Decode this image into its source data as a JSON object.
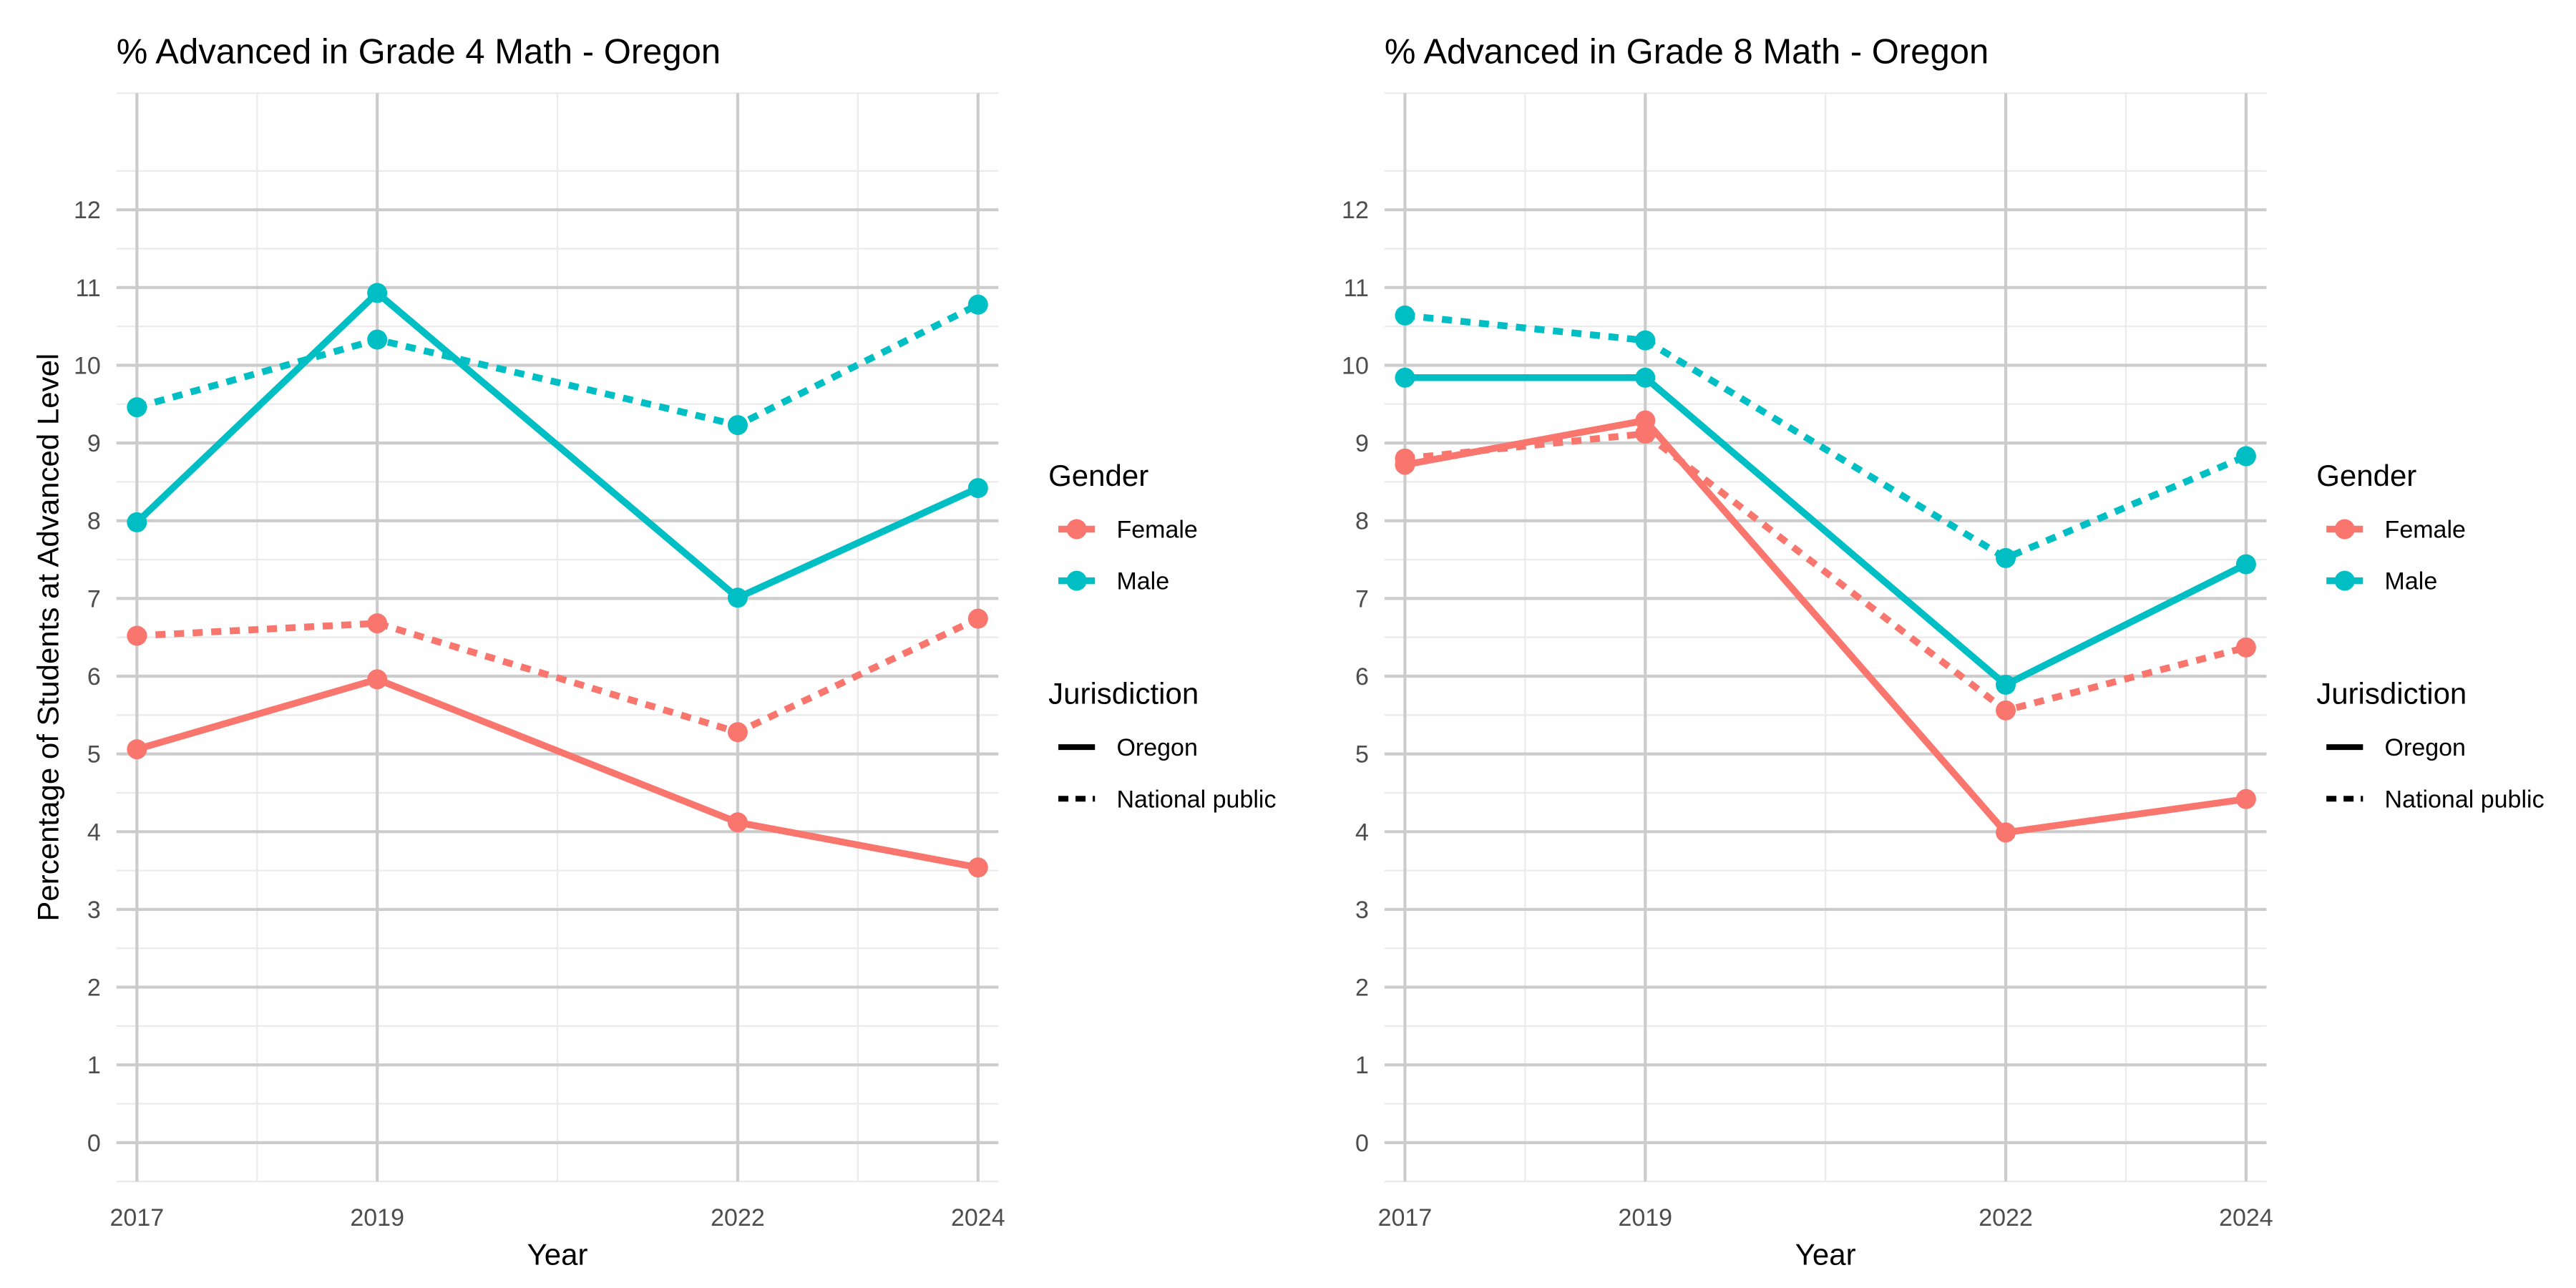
{
  "chart_data": [
    {
      "type": "line",
      "title": "% Advanced in Grade 4 Math - Oregon",
      "xlabel": "Year",
      "ylabel": "Percentage of Students at Advanced Level",
      "x": [
        2017,
        2019,
        2022,
        2024
      ],
      "xlim": [
        2016.83,
        2024.17
      ],
      "ylim": [
        -0.5,
        13.5
      ],
      "yticks": [
        0,
        1,
        2,
        3,
        4,
        5,
        6,
        7,
        8,
        9,
        10,
        11,
        12
      ],
      "grid": true,
      "series": [
        {
          "gender": "Female",
          "jurisdiction": "Oregon",
          "values": [
            5.06,
            5.96,
            4.12,
            3.54
          ]
        },
        {
          "gender": "Female",
          "jurisdiction": "National public",
          "values": [
            6.52,
            6.68,
            5.28,
            6.74
          ]
        },
        {
          "gender": "Male",
          "jurisdiction": "Oregon",
          "values": [
            7.98,
            10.93,
            7.01,
            8.42
          ]
        },
        {
          "gender": "Male",
          "jurisdiction": "National public",
          "values": [
            9.46,
            10.33,
            9.23,
            10.78
          ]
        }
      ]
    },
    {
      "type": "line",
      "title": "% Advanced in Grade 8 Math - Oregon",
      "xlabel": "Year",
      "ylabel": "",
      "x": [
        2017,
        2019,
        2022,
        2024
      ],
      "xlim": [
        2016.83,
        2024.17
      ],
      "ylim": [
        -0.5,
        13.5
      ],
      "yticks": [
        0,
        1,
        2,
        3,
        4,
        5,
        6,
        7,
        8,
        9,
        10,
        11,
        12
      ],
      "grid": true,
      "series": [
        {
          "gender": "Female",
          "jurisdiction": "Oregon",
          "values": [
            8.72,
            9.29,
            3.99,
            4.42
          ]
        },
        {
          "gender": "Female",
          "jurisdiction": "National public",
          "values": [
            8.8,
            9.12,
            5.56,
            6.37
          ]
        },
        {
          "gender": "Male",
          "jurisdiction": "Oregon",
          "values": [
            9.84,
            9.84,
            5.89,
            7.44
          ]
        },
        {
          "gender": "Male",
          "jurisdiction": "National public",
          "values": [
            10.64,
            10.32,
            7.52,
            8.83
          ]
        }
      ]
    }
  ],
  "legend": {
    "placement": "right",
    "gender_title": "Gender",
    "gender_entries": [
      {
        "label": "Female",
        "color": "#F8766D"
      },
      {
        "label": "Male",
        "color": "#00BFC4"
      }
    ],
    "jurisdiction_title": "Jurisdiction",
    "jurisdiction_entries": [
      {
        "label": "Oregon",
        "linetype": "solid"
      },
      {
        "label": "National public",
        "linetype": "dashed"
      }
    ]
  },
  "colors": {
    "Female": "#F8766D",
    "Male": "#00BFC4",
    "grid_major": "#cccccc",
    "grid_minor": "#ebebeb"
  }
}
